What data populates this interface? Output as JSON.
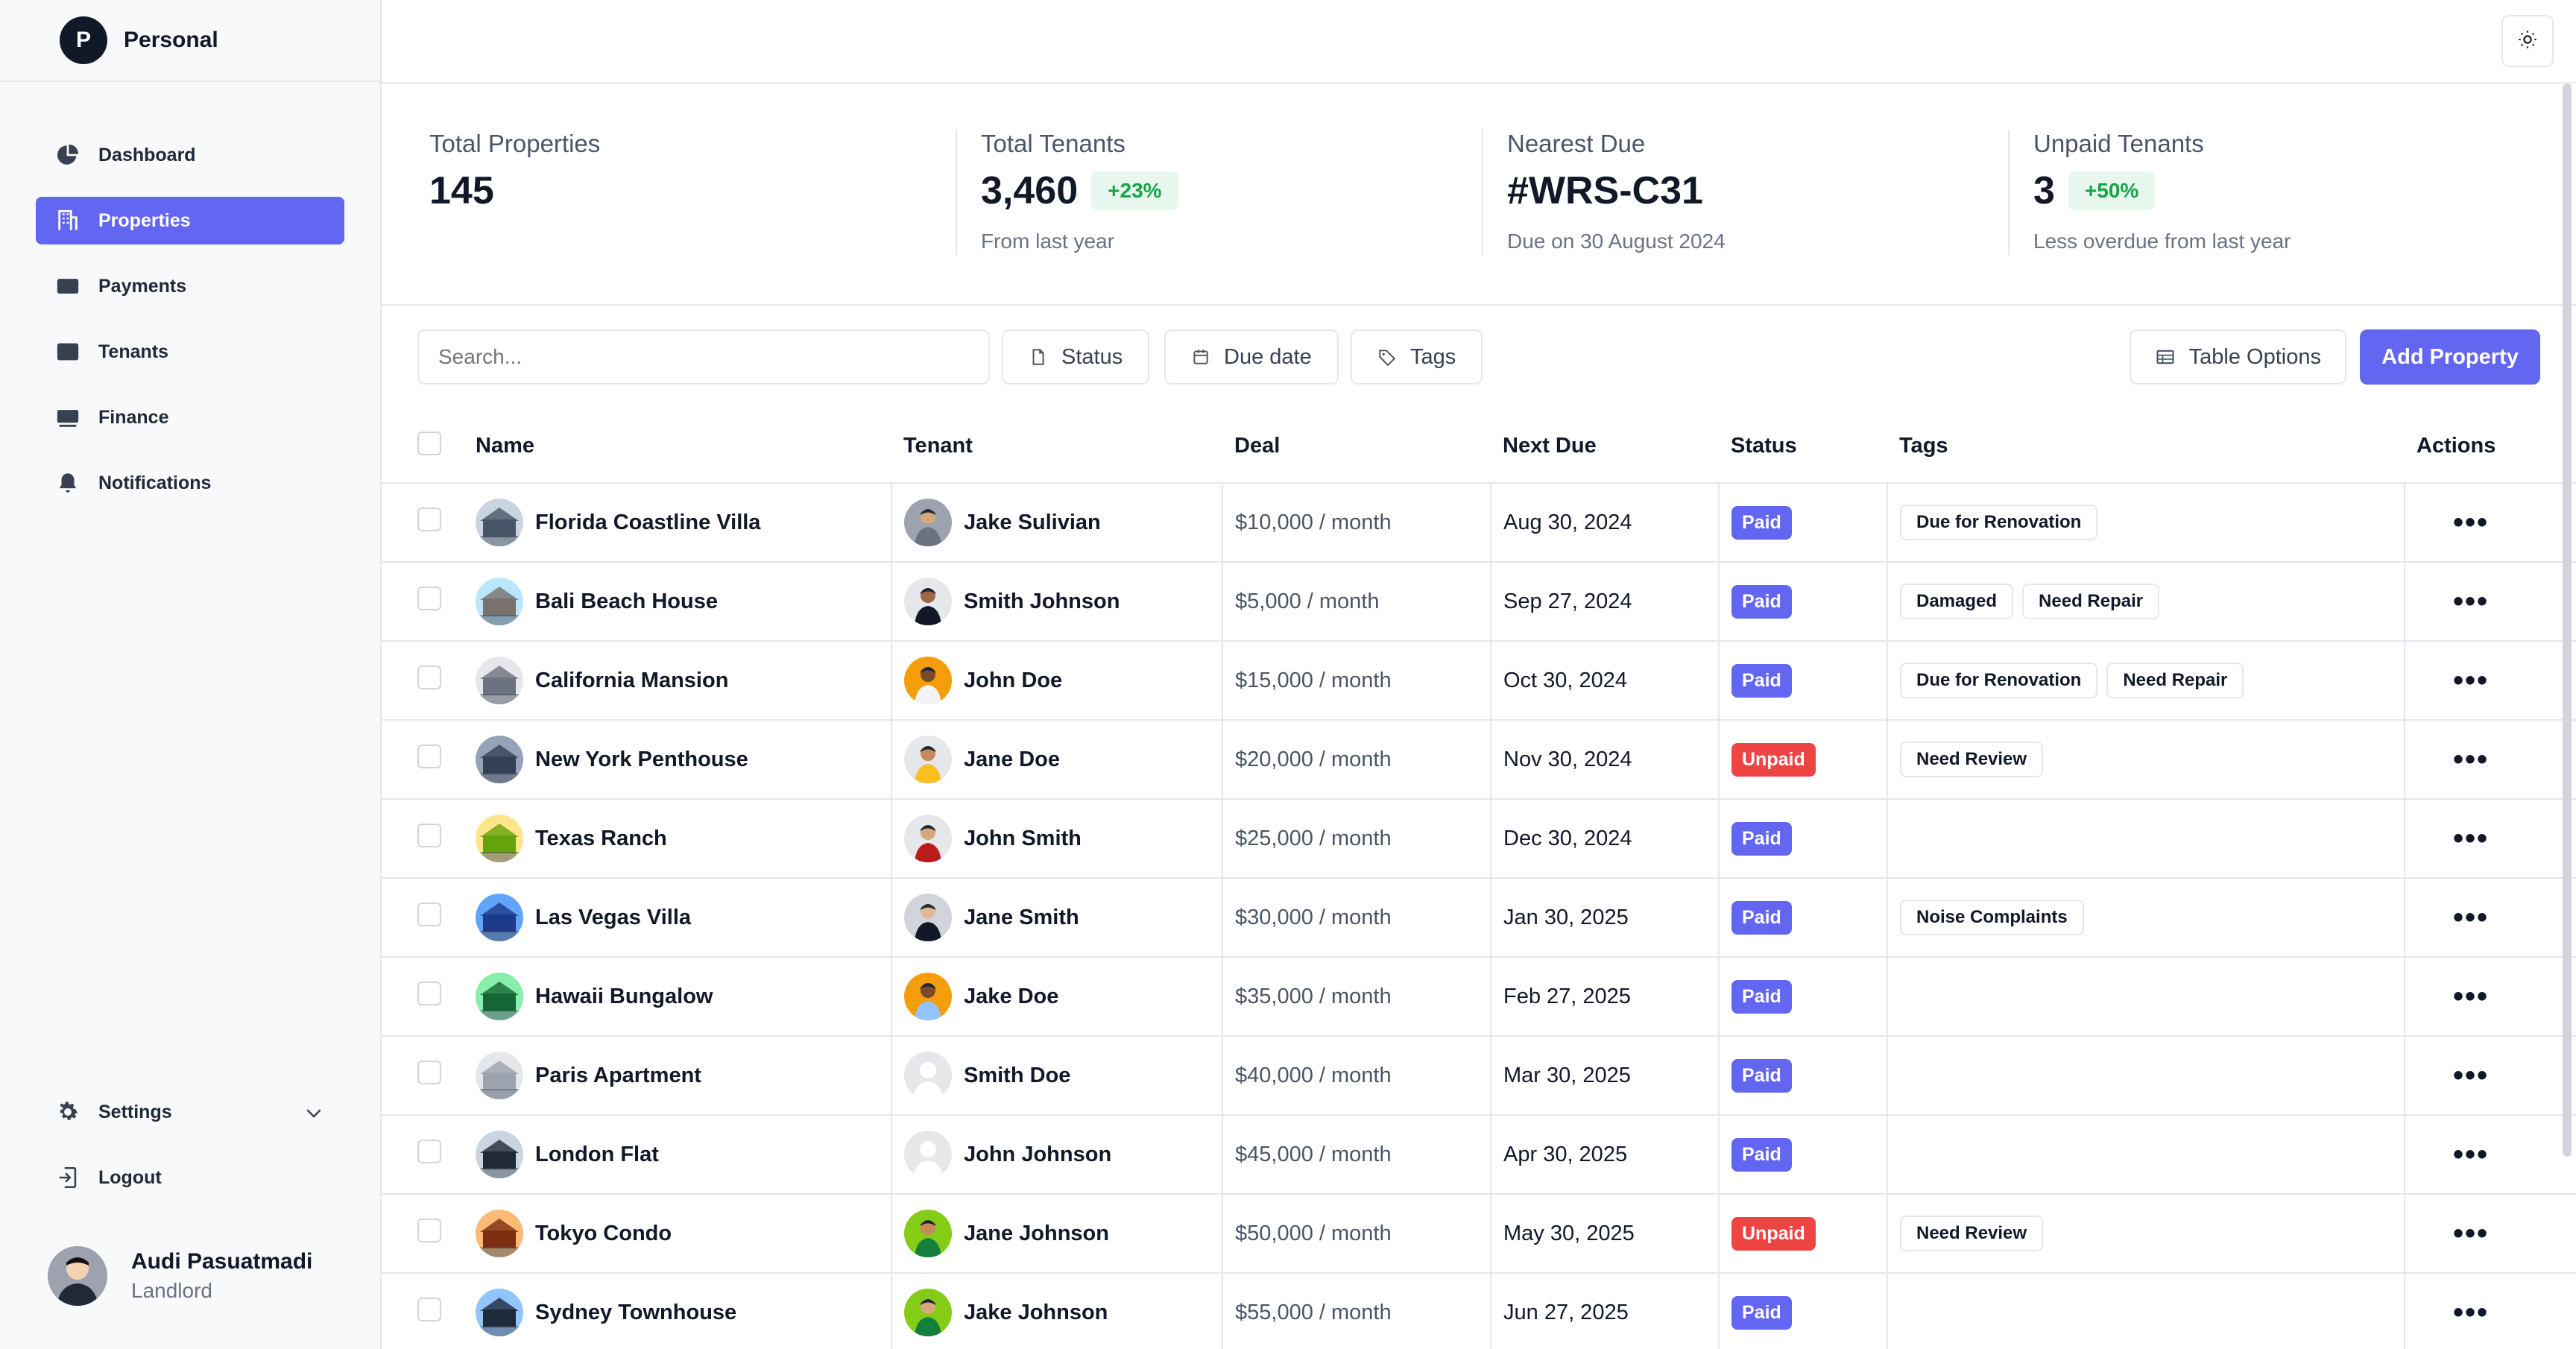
{
  "workspace": {
    "initial": "P",
    "name": "Personal"
  },
  "nav": [
    {
      "label": "Dashboard",
      "icon": "pie-chart-icon",
      "active": false
    },
    {
      "label": "Properties",
      "icon": "building-icon",
      "active": true
    },
    {
      "label": "Payments",
      "icon": "credit-card-icon",
      "active": false
    },
    {
      "label": "Tenants",
      "icon": "id-card-icon",
      "active": false
    },
    {
      "label": "Finance",
      "icon": "cash-icon",
      "active": false
    },
    {
      "label": "Notifications",
      "icon": "bell-icon",
      "active": false
    }
  ],
  "settings": {
    "label": "Settings",
    "logout": "Logout"
  },
  "user": {
    "name": "Audi Pasuatmadi",
    "role": "Landlord"
  },
  "stats": [
    {
      "label": "Total Properties",
      "value": "145",
      "badge": "",
      "sub": ""
    },
    {
      "label": "Total Tenants",
      "value": "3,460",
      "badge": "+23%",
      "sub": "From last year"
    },
    {
      "label": "Nearest Due",
      "value": "#WRS-C31",
      "badge": "",
      "sub": "Due on 30 August 2024"
    },
    {
      "label": "Unpaid Tenants",
      "value": "3",
      "badge": "+50%",
      "sub": "Less overdue from last year"
    }
  ],
  "toolbar": {
    "search_placeholder": "Search...",
    "status": "Status",
    "due_date": "Due date",
    "tags": "Tags",
    "table_options": "Table Options",
    "add_property": "Add Property"
  },
  "columns": [
    "Name",
    "Tenant",
    "Deal",
    "Next Due",
    "Status",
    "Tags",
    "Actions"
  ],
  "colors": {
    "accent": "#6366f1",
    "paid": "#6366f1",
    "unpaid": "#ef4444",
    "badge_green": "#16a34a"
  },
  "rows": [
    {
      "name": "Florida Coastline Villa",
      "tenant": "Jake Sulivian",
      "deal": "$10,000 / month",
      "due": "Aug 30, 2024",
      "status": "Paid",
      "tags": [
        "Due for Renovation"
      ]
    },
    {
      "name": "Bali Beach House",
      "tenant": "Smith Johnson",
      "deal": "$5,000 / month",
      "due": "Sep 27, 2024",
      "status": "Paid",
      "tags": [
        "Damaged",
        "Need Repair"
      ]
    },
    {
      "name": "California Mansion",
      "tenant": "John Doe",
      "deal": "$15,000 / month",
      "due": "Oct 30, 2024",
      "status": "Paid",
      "tags": [
        "Due for Renovation",
        "Need Repair"
      ]
    },
    {
      "name": "New York Penthouse",
      "tenant": "Jane Doe",
      "deal": "$20,000 / month",
      "due": "Nov 30, 2024",
      "status": "Unpaid",
      "tags": [
        "Need Review"
      ]
    },
    {
      "name": "Texas Ranch",
      "tenant": "John Smith",
      "deal": "$25,000 / month",
      "due": "Dec 30, 2024",
      "status": "Paid",
      "tags": []
    },
    {
      "name": "Las Vegas Villa",
      "tenant": "Jane Smith",
      "deal": "$30,000 / month",
      "due": "Jan 30, 2025",
      "status": "Paid",
      "tags": [
        "Noise Complaints"
      ]
    },
    {
      "name": "Hawaii Bungalow",
      "tenant": "Jake Doe",
      "deal": "$35,000 / month",
      "due": "Feb 27, 2025",
      "status": "Paid",
      "tags": []
    },
    {
      "name": "Paris Apartment",
      "tenant": "Smith Doe",
      "deal": "$40,000 / month",
      "due": "Mar 30, 2025",
      "status": "Paid",
      "tags": []
    },
    {
      "name": "London Flat",
      "tenant": "John Johnson",
      "deal": "$45,000 / month",
      "due": "Apr 30, 2025",
      "status": "Paid",
      "tags": []
    },
    {
      "name": "Tokyo Condo",
      "tenant": "Jane Johnson",
      "deal": "$50,000 / month",
      "due": "May 30, 2025",
      "status": "Unpaid",
      "tags": [
        "Need Review"
      ]
    },
    {
      "name": "Sydney Townhouse",
      "tenant": "Jake Johnson",
      "deal": "$55,000 / month",
      "due": "Jun 27, 2025",
      "status": "Paid",
      "tags": []
    }
  ]
}
